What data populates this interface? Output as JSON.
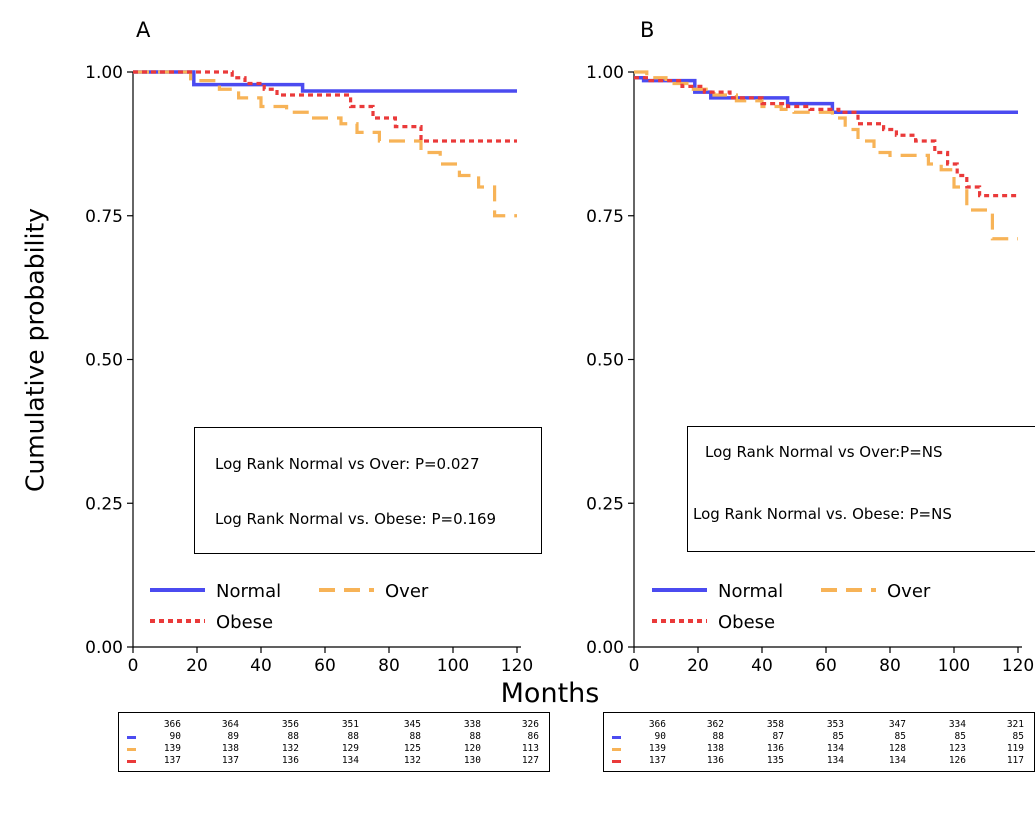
{
  "colors": {
    "normal": "#4b4bf0",
    "over": "#f7b357",
    "obese": "#ea3a3a"
  },
  "shared": {
    "ylabel": "Cumulative probability",
    "xlabel": "Months"
  },
  "chart_data": [
    {
      "type": "line",
      "panel_label": "A",
      "xlim": [
        0,
        120
      ],
      "ylim": [
        0,
        1
      ],
      "xticks": [
        0,
        20,
        40,
        60,
        80,
        100,
        120
      ],
      "yticks": [
        "0.00",
        "0.25",
        "0.50",
        "0.75",
        "1.00"
      ],
      "legend": {
        "placement": "bottom-left",
        "entries": [
          "Normal",
          "Over",
          "Obese"
        ]
      },
      "annotations": [
        "Log Rank Normal vs Over: P=0.027",
        "Log Rank Normal vs. Obese: P=0.169"
      ],
      "series": [
        {
          "name": "Normal",
          "style": "solid",
          "x": [
            0,
            19,
            53,
            120
          ],
          "y": [
            1.0,
            0.978,
            0.967,
            0.967
          ]
        },
        {
          "name": "Over",
          "style": "dashed",
          "x": [
            0,
            18,
            27,
            33,
            40,
            48,
            55,
            65,
            70,
            77,
            90,
            96,
            102,
            108,
            113,
            120
          ],
          "y": [
            1.0,
            0.985,
            0.97,
            0.955,
            0.94,
            0.93,
            0.92,
            0.91,
            0.895,
            0.88,
            0.86,
            0.84,
            0.82,
            0.8,
            0.75,
            0.75
          ]
        },
        {
          "name": "Obese",
          "style": "dotted",
          "x": [
            0,
            20,
            31,
            35,
            41,
            45,
            52,
            68,
            75,
            82,
            90,
            120
          ],
          "y": [
            1.0,
            1.0,
            0.99,
            0.98,
            0.97,
            0.96,
            0.96,
            0.94,
            0.92,
            0.905,
            0.88,
            0.88
          ]
        }
      ],
      "risk_table": {
        "header": [
          "366",
          "364",
          "356",
          "351",
          "345",
          "338",
          "326"
        ],
        "rows": [
          {
            "series": "Normal",
            "values": [
              "90",
              "89",
              "88",
              "88",
              "88",
              "88",
              "86"
            ]
          },
          {
            "series": "Over",
            "values": [
              "139",
              "138",
              "132",
              "129",
              "125",
              "120",
              "113"
            ]
          },
          {
            "series": "Obese",
            "values": [
              "137",
              "137",
              "136",
              "134",
              "132",
              "130",
              "127"
            ]
          }
        ]
      }
    },
    {
      "type": "line",
      "panel_label": "B",
      "xlim": [
        0,
        120
      ],
      "ylim": [
        0,
        1
      ],
      "xticks": [
        0,
        20,
        40,
        60,
        80,
        100,
        120
      ],
      "yticks": [
        "0.00",
        "0.25",
        "0.50",
        "0.75",
        "1.00"
      ],
      "legend": {
        "placement": "bottom-left",
        "entries": [
          "Normal",
          "Over",
          "Obese"
        ]
      },
      "annotations": [
        "Log Rank Normal vs Over:P=NS",
        "Log Rank Normal vs. Obese: P=NS"
      ],
      "series": [
        {
          "name": "Normal",
          "style": "solid",
          "x": [
            0,
            3,
            19,
            24,
            48,
            62,
            68,
            120
          ],
          "y": [
            0.99,
            0.985,
            0.965,
            0.955,
            0.945,
            0.93,
            0.93,
            0.93
          ]
        },
        {
          "name": "Over",
          "style": "dashed",
          "x": [
            0,
            4,
            10,
            18,
            25,
            32,
            40,
            46,
            50,
            62,
            66,
            70,
            75,
            80,
            88,
            92,
            96,
            100,
            104,
            108,
            112,
            120
          ],
          "y": [
            1.0,
            0.99,
            0.98,
            0.97,
            0.96,
            0.95,
            0.94,
            0.935,
            0.93,
            0.92,
            0.9,
            0.88,
            0.86,
            0.855,
            0.855,
            0.84,
            0.83,
            0.8,
            0.76,
            0.76,
            0.71,
            0.71
          ]
        },
        {
          "name": "Obese",
          "style": "dotted",
          "x": [
            0,
            5,
            15,
            22,
            30,
            40,
            48,
            55,
            64,
            70,
            78,
            82,
            88,
            94,
            98,
            101,
            104,
            108,
            120
          ],
          "y": [
            0.99,
            0.985,
            0.975,
            0.965,
            0.955,
            0.945,
            0.94,
            0.935,
            0.93,
            0.91,
            0.9,
            0.89,
            0.88,
            0.86,
            0.84,
            0.82,
            0.8,
            0.785,
            0.785
          ]
        }
      ],
      "risk_table": {
        "header": [
          "366",
          "362",
          "358",
          "353",
          "347",
          "334",
          "321"
        ],
        "rows": [
          {
            "series": "Normal",
            "values": [
              "90",
              "88",
              "87",
              "85",
              "85",
              "85",
              "85"
            ]
          },
          {
            "series": "Over",
            "values": [
              "139",
              "138",
              "136",
              "134",
              "128",
              "123",
              "119"
            ]
          },
          {
            "series": "Obese",
            "values": [
              "137",
              "136",
              "135",
              "134",
              "134",
              "126",
              "117"
            ]
          }
        ]
      }
    }
  ]
}
